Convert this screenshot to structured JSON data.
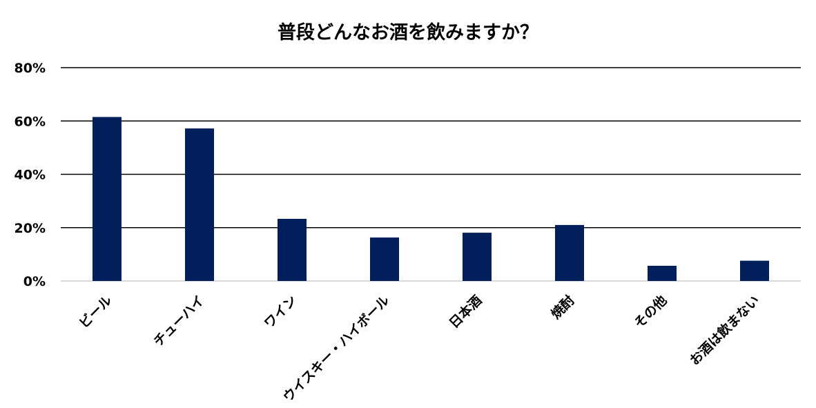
{
  "chart_data": {
    "type": "bar",
    "title": "普段どんなお酒を飲みますか？",
    "xlabel": "",
    "ylabel": "",
    "categories": [
      "ビール",
      "チューハイ",
      "ワイン",
      "ウイスキー・ハイボール",
      "日本酒",
      "焼酎",
      "その他",
      "お酒は飲まない"
    ],
    "values": [
      61.5,
      57.2,
      23.3,
      16.3,
      18.1,
      21.0,
      5.7,
      7.6
    ],
    "unit": "%",
    "ylim": [
      0,
      80
    ],
    "yticks": [
      "0%",
      "20%",
      "40%",
      "60%",
      "80%"
    ],
    "grid": true,
    "legend": "none",
    "bar_color": "#001f5b"
  }
}
